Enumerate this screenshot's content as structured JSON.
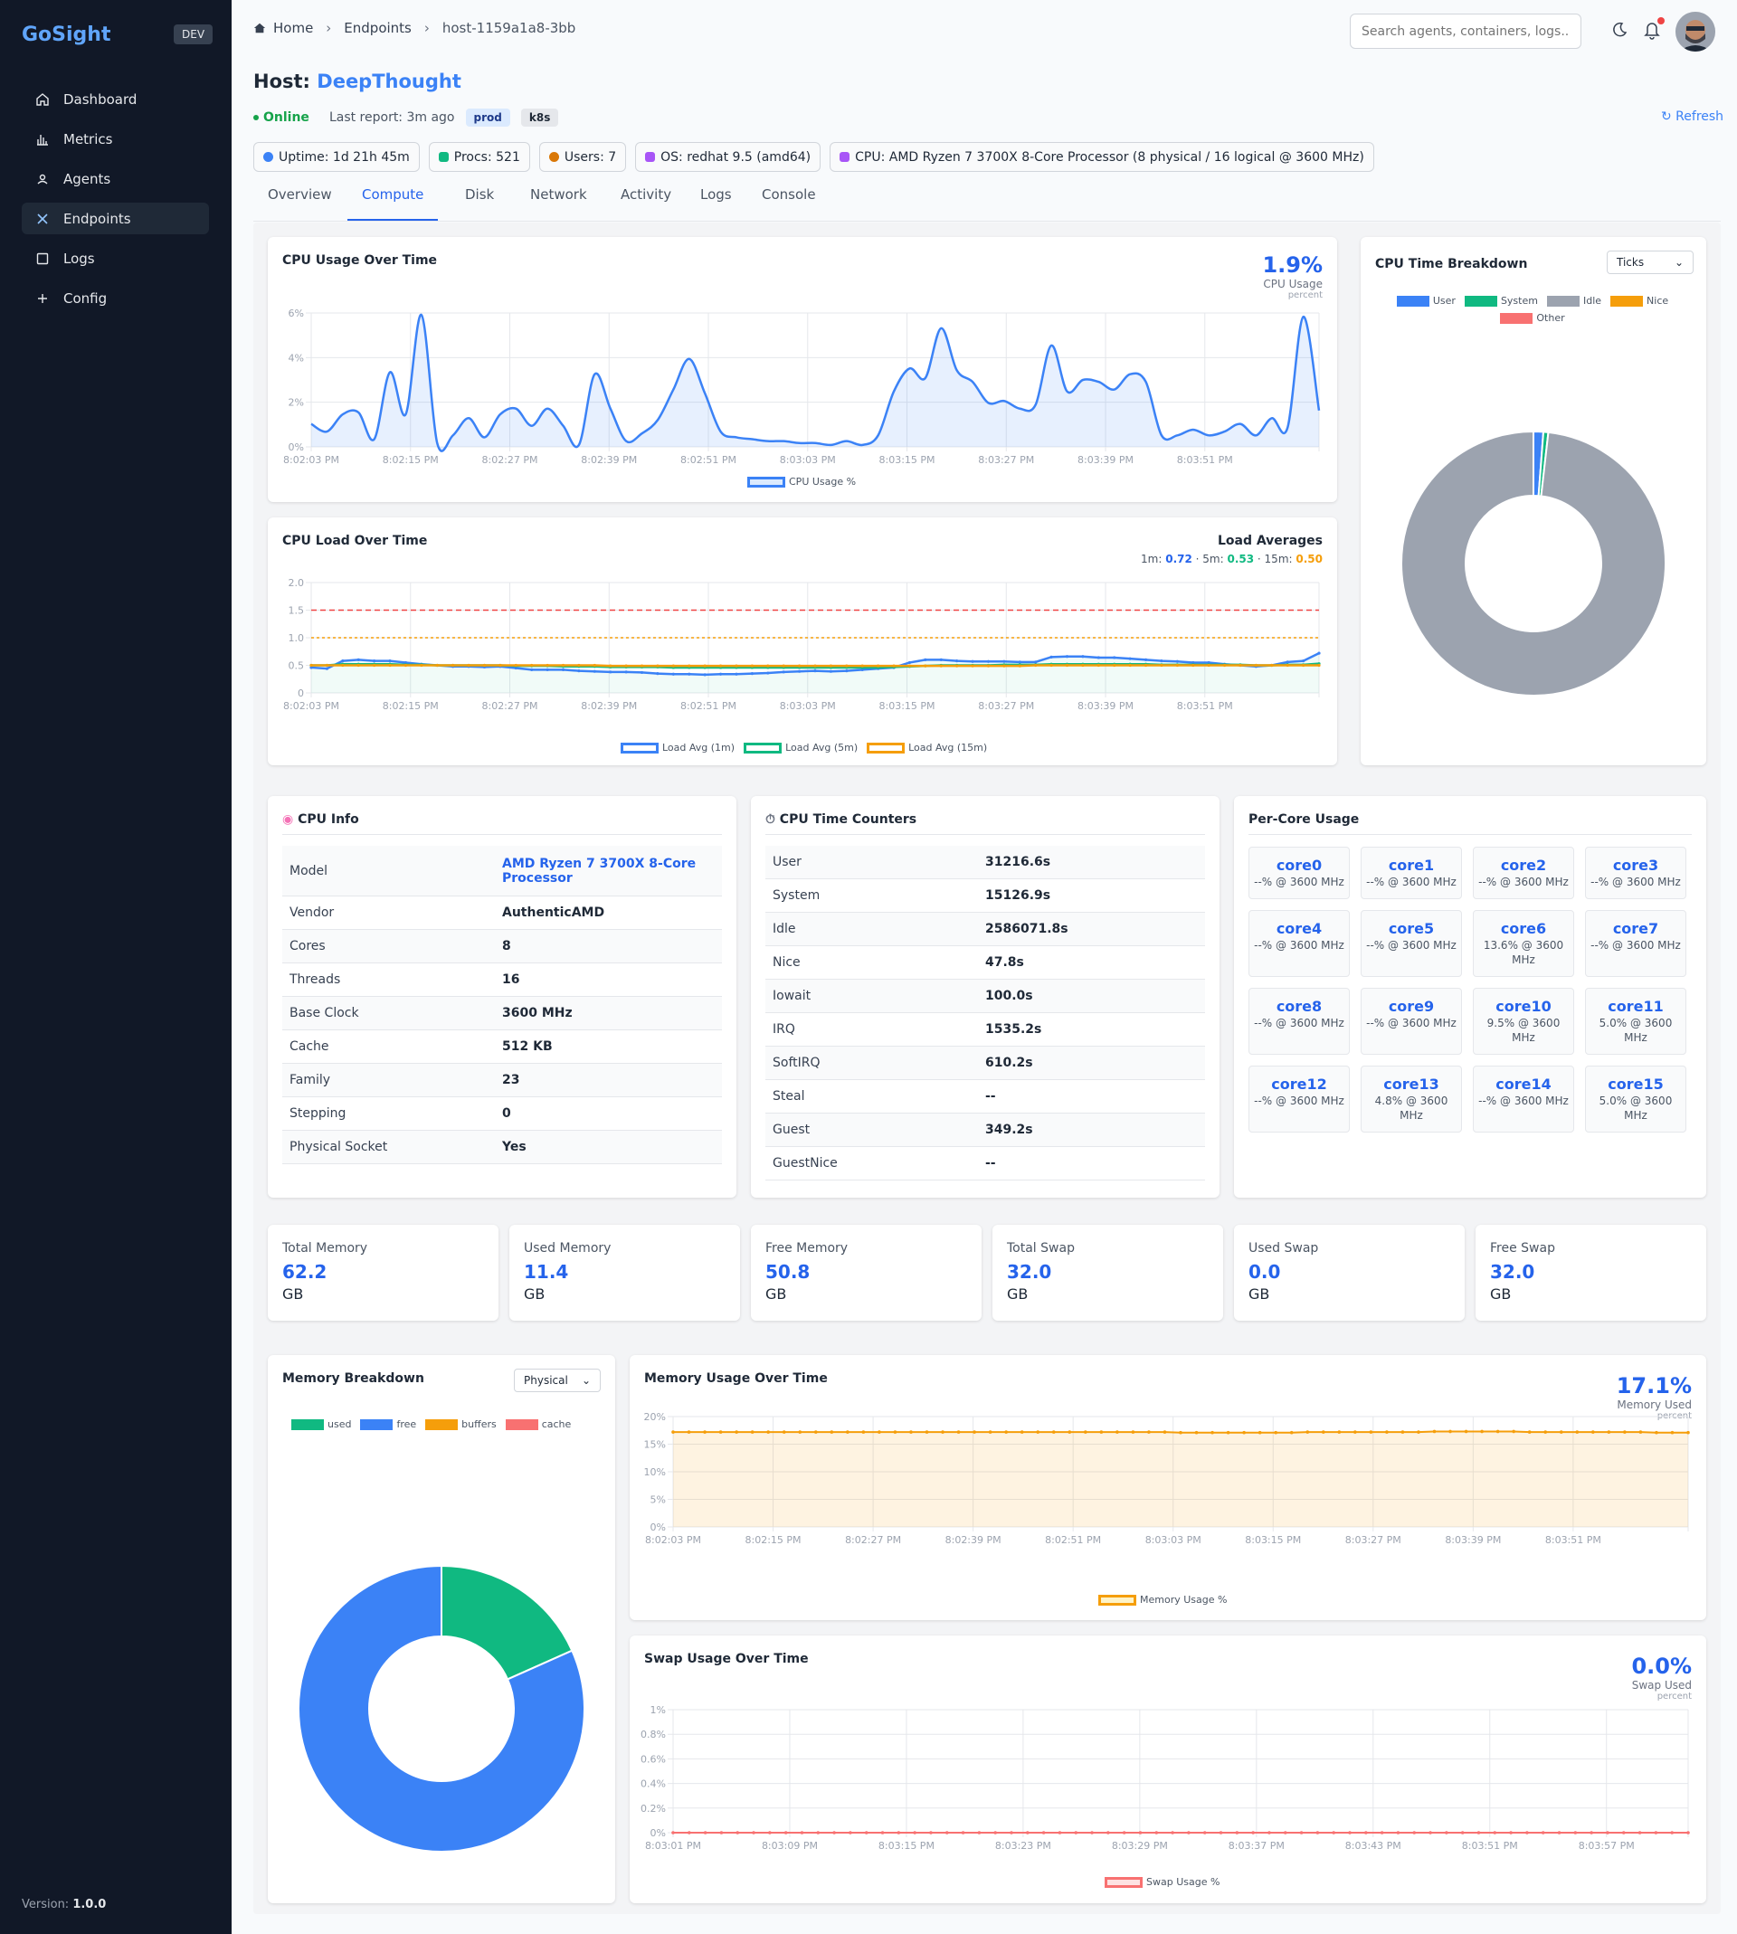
{
  "sidebar": {
    "brand": "GoSight",
    "env": "DEV",
    "items": [
      {
        "label": "Dashboard",
        "icon": "home-icon"
      },
      {
        "label": "Metrics",
        "icon": "bar-chart-icon"
      },
      {
        "label": "Agents",
        "icon": "user-icon"
      },
      {
        "label": "Endpoints",
        "icon": "close-x-icon",
        "active": true
      },
      {
        "label": "Logs",
        "icon": "square-icon"
      },
      {
        "label": "Config",
        "icon": "plus-icon"
      }
    ],
    "version_label": "Version:",
    "version": "1.0.0"
  },
  "topbar": {
    "breadcrumb": [
      "Home",
      "Endpoints",
      "host-1159a1a8-3bb"
    ],
    "search_placeholder": "Search agents, containers, logs..."
  },
  "host": {
    "title_prefix": "Host:",
    "name": "DeepThought",
    "status": "Online",
    "last_report": "Last report: 3m ago",
    "tags": [
      "prod",
      "k8s"
    ],
    "refresh": "↻ Refresh",
    "badges": [
      {
        "text": "Uptime: 1d 21h 45m",
        "color": "#3b82f6"
      },
      {
        "text": "Procs: 521",
        "color": "#10b981"
      },
      {
        "text": "Users: 7",
        "color": "#d97706"
      },
      {
        "text": "OS: redhat 9.5 (amd64)",
        "color": "#a855f7"
      },
      {
        "text": "CPU: AMD Ryzen 7 3700X 8-Core Processor (8 physical / 16 logical @ 3600 MHz)",
        "color": "#a855f7"
      }
    ]
  },
  "tabs": [
    "Overview",
    "Compute",
    "Disk",
    "Network",
    "Activity",
    "Logs",
    "Console"
  ],
  "active_tab": "Compute",
  "cpu_usage": {
    "title": "CPU Usage Over Time",
    "value": "1.9%",
    "label": "CPU Usage",
    "unit": "percent",
    "legend": "CPU Usage %"
  },
  "cpu_load": {
    "title": "CPU Load Over Time",
    "averages_title": "Load Averages",
    "m1_label": "1m:",
    "m1": "0.72",
    "m5_label": "· 5m:",
    "m5": "0.53",
    "m15_label": "· 15m:",
    "m15": "0.50",
    "legend": [
      "Load Avg (1m)",
      "Load Avg (5m)",
      "Load Avg (15m)"
    ]
  },
  "cpu_breakdown": {
    "title": "CPU Time Breakdown",
    "select": "Ticks",
    "legend": [
      "User",
      "System",
      "Idle",
      "Nice",
      "Other"
    ]
  },
  "cpu_info": {
    "title": "CPU Info",
    "rows": [
      {
        "k": "Model",
        "v": "AMD Ryzen 7 3700X 8-Core Processor"
      },
      {
        "k": "Vendor",
        "v": "AuthenticAMD"
      },
      {
        "k": "Cores",
        "v": "8"
      },
      {
        "k": "Threads",
        "v": "16"
      },
      {
        "k": "Base Clock",
        "v": "3600 MHz"
      },
      {
        "k": "Cache",
        "v": "512 KB"
      },
      {
        "k": "Family",
        "v": "23"
      },
      {
        "k": "Stepping",
        "v": "0"
      },
      {
        "k": "Physical Socket",
        "v": "Yes"
      }
    ]
  },
  "cpu_counters": {
    "title": "CPU Time Counters",
    "rows": [
      {
        "k": "User",
        "v": "31216.6s"
      },
      {
        "k": "System",
        "v": "15126.9s"
      },
      {
        "k": "Idle",
        "v": "2586071.8s"
      },
      {
        "k": "Nice",
        "v": "47.8s"
      },
      {
        "k": "Iowait",
        "v": "100.0s"
      },
      {
        "k": "IRQ",
        "v": "1535.2s"
      },
      {
        "k": "SoftIRQ",
        "v": "610.2s"
      },
      {
        "k": "Steal",
        "v": "--"
      },
      {
        "k": "Guest",
        "v": "349.2s"
      },
      {
        "k": "GuestNice",
        "v": "--"
      }
    ]
  },
  "per_core": {
    "title": "Per-Core Usage",
    "cores": [
      {
        "name": "core0",
        "usage": "--% @ 3600 MHz"
      },
      {
        "name": "core1",
        "usage": "--% @ 3600 MHz"
      },
      {
        "name": "core2",
        "usage": "--% @ 3600 MHz"
      },
      {
        "name": "core3",
        "usage": "--% @ 3600 MHz"
      },
      {
        "name": "core4",
        "usage": "--% @ 3600 MHz"
      },
      {
        "name": "core5",
        "usage": "--% @ 3600 MHz"
      },
      {
        "name": "core6",
        "usage": "13.6% @ 3600 MHz"
      },
      {
        "name": "core7",
        "usage": "--% @ 3600 MHz"
      },
      {
        "name": "core8",
        "usage": "--% @ 3600 MHz"
      },
      {
        "name": "core9",
        "usage": "--% @ 3600 MHz"
      },
      {
        "name": "core10",
        "usage": "9.5% @ 3600 MHz"
      },
      {
        "name": "core11",
        "usage": "5.0% @ 3600 MHz"
      },
      {
        "name": "core12",
        "usage": "--% @ 3600 MHz"
      },
      {
        "name": "core13",
        "usage": "4.8% @ 3600 MHz"
      },
      {
        "name": "core14",
        "usage": "--% @ 3600 MHz"
      },
      {
        "name": "core15",
        "usage": "5.0% @ 3600 MHz"
      }
    ]
  },
  "memory_stats": [
    {
      "label": "Total Memory",
      "value": "62.2",
      "unit": "GB"
    },
    {
      "label": "Used Memory",
      "value": "11.4",
      "unit": "GB"
    },
    {
      "label": "Free Memory",
      "value": "50.8",
      "unit": "GB"
    },
    {
      "label": "Total Swap",
      "value": "32.0",
      "unit": "GB"
    },
    {
      "label": "Used Swap",
      "value": "0.0",
      "unit": "GB"
    },
    {
      "label": "Free Swap",
      "value": "32.0",
      "unit": "GB"
    }
  ],
  "mem_breakdown": {
    "title": "Memory Breakdown",
    "select": "Physical",
    "legend": [
      "used",
      "free",
      "buffers",
      "cache"
    ]
  },
  "mem_usage": {
    "title": "Memory Usage Over Time",
    "value": "17.1%",
    "label": "Memory Used",
    "unit": "percent",
    "legend": "Memory Usage %"
  },
  "swap_usage": {
    "title": "Swap Usage Over Time",
    "value": "0.0%",
    "label": "Swap Used",
    "unit": "percent",
    "legend": "Swap Usage %"
  },
  "colors": {
    "accent": "#3b82f6",
    "user": "#3b82f6",
    "system": "#10b981",
    "idle": "#9ca3af",
    "nice": "#f59e0b",
    "other": "#f87171",
    "mem_used": "#10b981",
    "mem_free": "#3b82f6",
    "mem_buffers": "#f59e0b",
    "mem_cache": "#f87171"
  },
  "chart_data": [
    {
      "type": "area",
      "title": "CPU Usage Over Time",
      "xlabel": "",
      "ylabel": "",
      "ylim": [
        0,
        7
      ],
      "yticks": [
        "0%",
        "2%",
        "4%",
        "6%"
      ],
      "xticks": [
        "8:02:03 PM",
        "8:02:15 PM",
        "8:02:27 PM",
        "8:02:39 PM",
        "8:02:51 PM",
        "8:03:03 PM",
        "8:03:15 PM",
        "8:03:27 PM",
        "8:03:39 PM",
        "8:03:51 PM"
      ],
      "grid": true,
      "series": [
        {
          "name": "CPU Usage %",
          "values": [
            1.2,
            0.8,
            1.7,
            1.8,
            0.4,
            3.9,
            1.7,
            6.9,
            0.2,
            0.6,
            1.5,
            0.5,
            1.7,
            2.0,
            1.1,
            2.0,
            1.1,
            0.1,
            3.8,
            2.0,
            0.3,
            0.7,
            1.4,
            3.0,
            4.6,
            2.8,
            0.8,
            0.5,
            0.4,
            0.3,
            0.3,
            0.2,
            0.2,
            0.1,
            0.3,
            0.1,
            0.6,
            2.9,
            4.1,
            3.6,
            6.2,
            4.0,
            3.4,
            2.3,
            2.4,
            2.0,
            2.2,
            5.3,
            2.9,
            3.5,
            3.4,
            3.0,
            3.8,
            3.4,
            0.6,
            0.6,
            0.9,
            0.6,
            0.8,
            1.2,
            0.6,
            1.5,
            1.0,
            6.8,
            1.9
          ]
        }
      ]
    },
    {
      "type": "line",
      "title": "CPU Load Over Time",
      "ylim": [
        0,
        2.0
      ],
      "yticks": [
        "0",
        "0.5",
        "1.0",
        "1.5",
        "2.0"
      ],
      "xticks": [
        "8:02:03 PM",
        "8:02:15 PM",
        "8:02:27 PM",
        "8:02:39 PM",
        "8:02:51 PM",
        "8:03:03 PM",
        "8:03:15 PM",
        "8:03:27 PM",
        "8:03:39 PM",
        "8:03:51 PM"
      ],
      "thresholds": [
        {
          "value": 1.5,
          "color": "#ef4444"
        },
        {
          "value": 1.0,
          "color": "#f59e0b"
        }
      ],
      "series": [
        {
          "name": "Load Avg (1m)",
          "values": [
            0.46,
            0.44,
            0.58,
            0.6,
            0.58,
            0.58,
            0.55,
            0.52,
            0.5,
            0.48,
            0.48,
            0.47,
            0.48,
            0.45,
            0.42,
            0.42,
            0.42,
            0.4,
            0.39,
            0.38,
            0.38,
            0.37,
            0.35,
            0.34,
            0.34,
            0.33,
            0.34,
            0.34,
            0.35,
            0.36,
            0.38,
            0.39,
            0.4,
            0.39,
            0.4,
            0.42,
            0.44,
            0.46,
            0.55,
            0.6,
            0.6,
            0.58,
            0.57,
            0.57,
            0.57,
            0.56,
            0.56,
            0.65,
            0.66,
            0.66,
            0.64,
            0.64,
            0.62,
            0.6,
            0.58,
            0.57,
            0.55,
            0.55,
            0.52,
            0.5,
            0.48,
            0.5,
            0.56,
            0.58,
            0.72
          ]
        },
        {
          "name": "Load Avg (5m)",
          "values": [
            0.5,
            0.5,
            0.52,
            0.52,
            0.52,
            0.52,
            0.51,
            0.51,
            0.5,
            0.5,
            0.5,
            0.5,
            0.5,
            0.49,
            0.49,
            0.49,
            0.48,
            0.48,
            0.48,
            0.47,
            0.47,
            0.47,
            0.47,
            0.46,
            0.46,
            0.46,
            0.46,
            0.46,
            0.46,
            0.46,
            0.46,
            0.46,
            0.46,
            0.46,
            0.46,
            0.46,
            0.46,
            0.47,
            0.48,
            0.49,
            0.5,
            0.5,
            0.5,
            0.5,
            0.51,
            0.51,
            0.51,
            0.52,
            0.52,
            0.52,
            0.52,
            0.52,
            0.52,
            0.52,
            0.51,
            0.51,
            0.51,
            0.51,
            0.51,
            0.51,
            0.5,
            0.5,
            0.51,
            0.51,
            0.53
          ]
        },
        {
          "name": "Load Avg (15m)",
          "values": [
            0.5,
            0.5,
            0.5,
            0.5,
            0.5,
            0.5,
            0.5,
            0.5,
            0.5,
            0.5,
            0.5,
            0.5,
            0.5,
            0.5,
            0.5,
            0.5,
            0.5,
            0.5,
            0.5,
            0.49,
            0.49,
            0.49,
            0.49,
            0.49,
            0.49,
            0.49,
            0.49,
            0.49,
            0.49,
            0.49,
            0.49,
            0.49,
            0.49,
            0.49,
            0.49,
            0.49,
            0.49,
            0.49,
            0.49,
            0.49,
            0.49,
            0.49,
            0.49,
            0.49,
            0.49,
            0.49,
            0.5,
            0.5,
            0.5,
            0.5,
            0.5,
            0.5,
            0.5,
            0.5,
            0.5,
            0.5,
            0.5,
            0.5,
            0.5,
            0.5,
            0.5,
            0.5,
            0.5,
            0.5,
            0.5
          ]
        }
      ]
    },
    {
      "type": "pie",
      "title": "CPU Time Breakdown",
      "donut": true,
      "categories": [
        "User",
        "System",
        "Idle",
        "Nice",
        "Other"
      ],
      "values": [
        1.2,
        0.6,
        98.2,
        0.0,
        0.0
      ]
    },
    {
      "type": "pie",
      "title": "Memory Breakdown",
      "donut": true,
      "categories": [
        "used",
        "free",
        "buffers",
        "cache"
      ],
      "values": [
        11.4,
        50.8,
        0,
        0
      ]
    },
    {
      "type": "area",
      "title": "Memory Usage Over Time",
      "ylim": [
        0,
        20
      ],
      "yticks": [
        "0%",
        "5%",
        "10%",
        "15%",
        "20%"
      ],
      "xticks": [
        "8:02:03 PM",
        "8:02:15 PM",
        "8:02:27 PM",
        "8:02:39 PM",
        "8:02:51 PM",
        "8:03:03 PM",
        "8:03:15 PM",
        "8:03:27 PM",
        "8:03:39 PM",
        "8:03:51 PM"
      ],
      "series": [
        {
          "name": "Memory Usage %",
          "values": [
            17.2,
            17.2,
            17.2,
            17.2,
            17.2,
            17.2,
            17.2,
            17.2,
            17.2,
            17.2,
            17.2,
            17.2,
            17.2,
            17.2,
            17.2,
            17.2,
            17.2,
            17.2,
            17.2,
            17.2,
            17.2,
            17.2,
            17.2,
            17.2,
            17.2,
            17.2,
            17.2,
            17.2,
            17.2,
            17.2,
            17.2,
            17.2,
            17.1,
            17.1,
            17.1,
            17.1,
            17.1,
            17.1,
            17.1,
            17.1,
            17.2,
            17.2,
            17.2,
            17.2,
            17.2,
            17.2,
            17.2,
            17.2,
            17.3,
            17.3,
            17.3,
            17.3,
            17.3,
            17.3,
            17.2,
            17.2,
            17.2,
            17.2,
            17.2,
            17.2,
            17.2,
            17.2,
            17.1,
            17.1,
            17.1
          ]
        }
      ]
    },
    {
      "type": "line",
      "title": "Swap Usage Over Time",
      "ylim": [
        0,
        1
      ],
      "yticks": [
        "0%",
        "0.2%",
        "0.4%",
        "0.6%",
        "0.8%",
        "1%"
      ],
      "xticks": [
        "8:03:01 PM",
        "8:03:09 PM",
        "8:03:15 PM",
        "8:03:23 PM",
        "8:03:29 PM",
        "8:03:37 PM",
        "8:03:43 PM",
        "8:03:51 PM",
        "8:03:57 PM"
      ],
      "series": [
        {
          "name": "Swap Usage %",
          "values": [
            0,
            0,
            0,
            0,
            0,
            0,
            0,
            0,
            0,
            0,
            0,
            0,
            0,
            0,
            0,
            0,
            0,
            0,
            0,
            0,
            0,
            0,
            0,
            0,
            0,
            0,
            0,
            0,
            0,
            0,
            0,
            0,
            0,
            0,
            0,
            0,
            0,
            0,
            0,
            0,
            0,
            0,
            0,
            0,
            0,
            0,
            0,
            0,
            0,
            0,
            0,
            0,
            0,
            0,
            0,
            0,
            0,
            0,
            0,
            0,
            0,
            0,
            0,
            0
          ]
        }
      ]
    }
  ]
}
